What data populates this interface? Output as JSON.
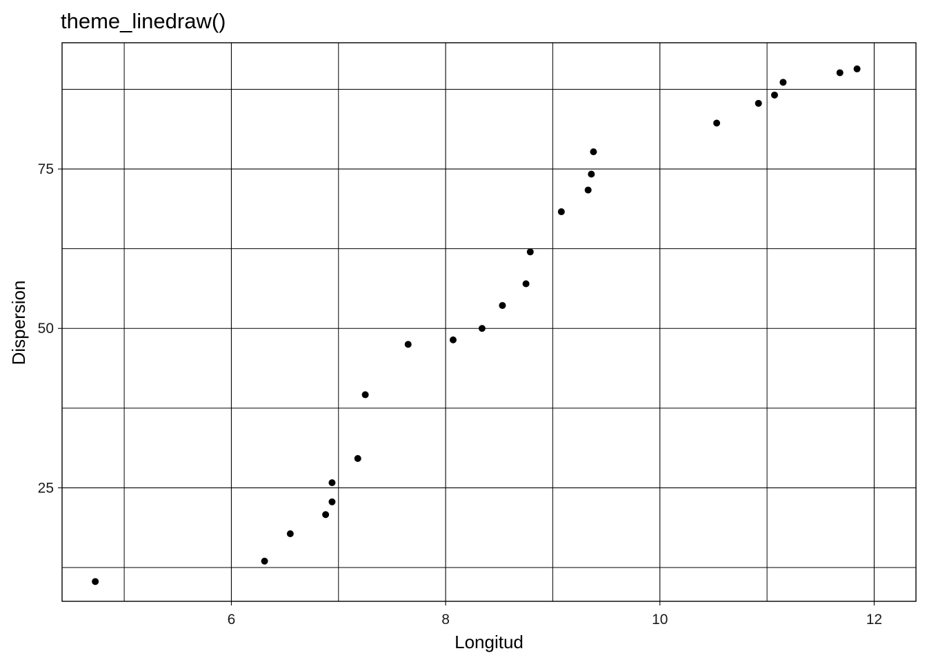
{
  "chart_data": {
    "type": "scatter",
    "title": "theme_linedraw()",
    "xlabel": "Longitud",
    "ylabel": "Dispersion",
    "xlim": [
      4.42,
      12.39
    ],
    "ylim": [
      7.2,
      94.8
    ],
    "x_major_ticks": [
      6,
      8,
      10,
      12
    ],
    "x_minor_ticks": [
      5,
      7,
      9,
      11
    ],
    "y_major_ticks": [
      25,
      50,
      75
    ],
    "y_minor_ticks": [
      12.5,
      37.5,
      62.5,
      87.5
    ],
    "grid": true,
    "legend": "none",
    "point_color": "#000000",
    "points": [
      {
        "x": 4.73,
        "y": 10.3
      },
      {
        "x": 6.31,
        "y": 13.5
      },
      {
        "x": 6.55,
        "y": 17.8
      },
      {
        "x": 6.88,
        "y": 20.8
      },
      {
        "x": 6.94,
        "y": 22.8
      },
      {
        "x": 6.94,
        "y": 25.8
      },
      {
        "x": 7.18,
        "y": 29.6
      },
      {
        "x": 7.25,
        "y": 39.6
      },
      {
        "x": 7.65,
        "y": 47.5
      },
      {
        "x": 8.07,
        "y": 48.2
      },
      {
        "x": 8.34,
        "y": 50.0
      },
      {
        "x": 8.53,
        "y": 53.6
      },
      {
        "x": 8.75,
        "y": 57.0
      },
      {
        "x": 8.79,
        "y": 62.0
      },
      {
        "x": 9.08,
        "y": 68.3
      },
      {
        "x": 9.33,
        "y": 71.7
      },
      {
        "x": 9.36,
        "y": 74.2
      },
      {
        "x": 9.38,
        "y": 77.7
      },
      {
        "x": 10.53,
        "y": 82.2
      },
      {
        "x": 10.92,
        "y": 85.3
      },
      {
        "x": 11.07,
        "y": 86.6
      },
      {
        "x": 11.15,
        "y": 88.6
      },
      {
        "x": 11.68,
        "y": 90.1
      },
      {
        "x": 11.84,
        "y": 90.7
      }
    ]
  }
}
